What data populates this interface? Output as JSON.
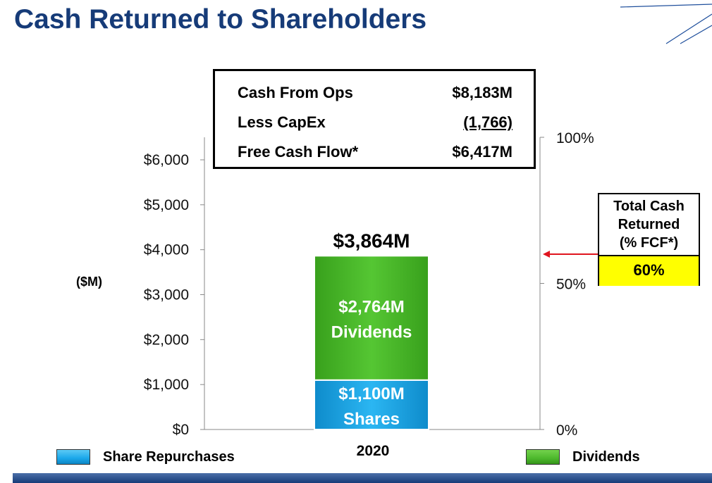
{
  "title": "Cash Returned to Shareholders",
  "fcf_box": {
    "rows": [
      {
        "label": "Cash From Ops",
        "value": "$8,183M"
      },
      {
        "label": "Less CapEx",
        "value": "(1,766)"
      },
      {
        "label": "Free Cash Flow*",
        "value": "$6,417M"
      }
    ]
  },
  "total_cash_box": {
    "header": [
      "Total Cash",
      "Returned",
      "(% FCF*)"
    ],
    "value": "60%"
  },
  "unit_label": "($M)",
  "colors": {
    "title": "#163b78",
    "shares": "#1aa7ea",
    "dividends": "#4cb82c",
    "arrow": "#e0141e",
    "highlight": "#ffff00"
  },
  "chart_data": {
    "type": "bar",
    "stacked": true,
    "categories": [
      "2020"
    ],
    "series": [
      {
        "name": "Share Repurchases",
        "values": [
          1100
        ],
        "label": [
          "$1,100M",
          "Shares"
        ],
        "color": "#1aa7ea"
      },
      {
        "name": "Dividends",
        "values": [
          2764
        ],
        "label": [
          "$2,764M",
          "Dividends"
        ],
        "color": "#4cb82c"
      }
    ],
    "total_label": "$3,864M",
    "y_left": {
      "ylim": [
        0,
        6000
      ],
      "ticks": [
        0,
        1000,
        2000,
        3000,
        4000,
        5000,
        6000
      ],
      "tick_labels": [
        "$0",
        "$1,000",
        "$2,000",
        "$3,000",
        "$4,000",
        "$5,000",
        "$6,000"
      ]
    },
    "y_right": {
      "ylim": [
        0,
        100
      ],
      "ticks": [
        0,
        50,
        100
      ],
      "tick_labels": [
        "0%",
        "50%",
        "100%"
      ]
    },
    "annotation": {
      "value": 60
    },
    "legend": [
      "Share Repurchases",
      "Dividends"
    ],
    "legend_position": "bottom",
    "grid": false
  }
}
